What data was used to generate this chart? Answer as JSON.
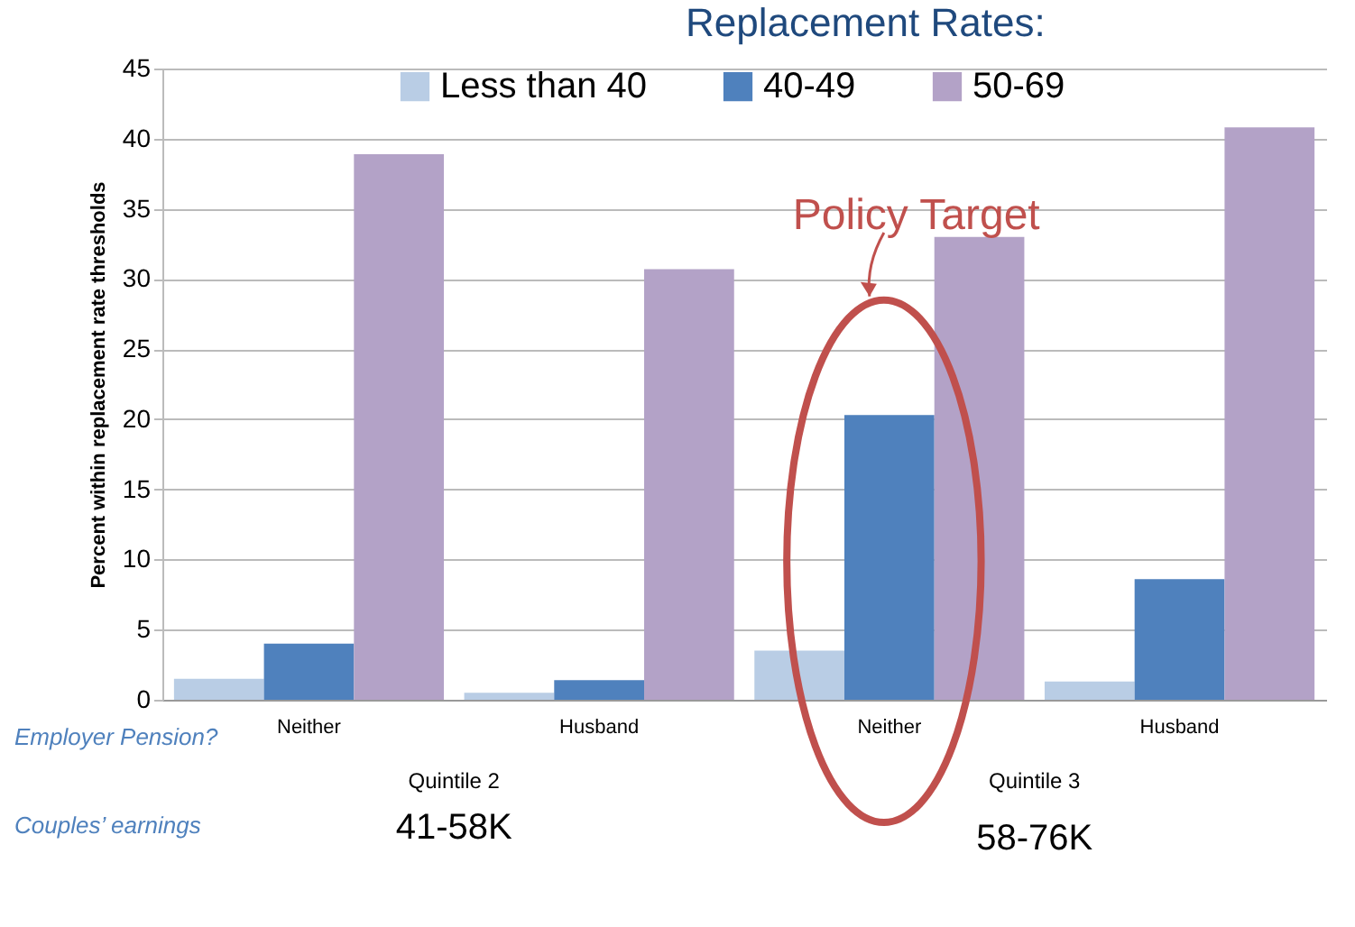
{
  "chart_data": {
    "type": "bar",
    "title": "Replacement Rates:",
    "ylabel": "Percent within replacement rate thresholds",
    "categories": [
      "Neither",
      "Husband",
      "Neither",
      "Husband"
    ],
    "series": [
      {
        "name": "Less than 40",
        "color": "#b9cde5",
        "values": [
          1.5,
          0.5,
          3.5,
          1.3
        ]
      },
      {
        "name": "40-49",
        "color": "#4f81bd",
        "values": [
          4.0,
          1.4,
          20.3,
          8.6
        ]
      },
      {
        "name": "50-69",
        "color": "#b3a2c7",
        "values": [
          38.9,
          30.7,
          33.0,
          40.8
        ]
      }
    ],
    "ylim": [
      0,
      45
    ],
    "yticks": [
      0,
      5,
      10,
      15,
      20,
      25,
      30,
      35,
      40,
      45
    ],
    "grid": "y",
    "legend": "top",
    "annotations": [
      "Policy Target",
      "Employer Pension?",
      "Couples’ earnings",
      "Quintile 2",
      "Quintile 3",
      "41-58K",
      "58-76K"
    ]
  }
}
